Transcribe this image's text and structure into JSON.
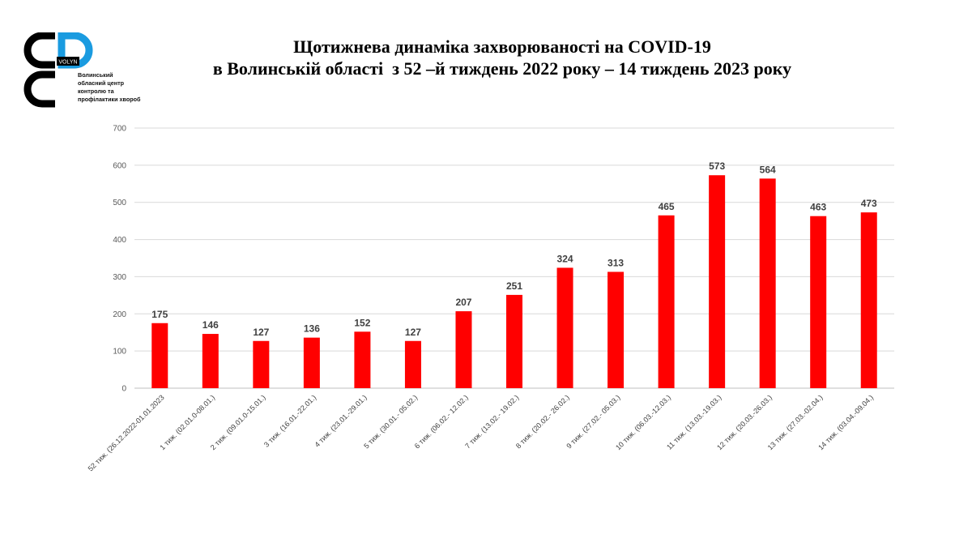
{
  "logo": {
    "badge": "VOLYN",
    "lines": [
      "Волинський",
      "обласний центр",
      "контролю та",
      "профілактики хвороб"
    ],
    "colors": {
      "dark": "#000000",
      "accent": "#1a9be0"
    }
  },
  "title_line1": "Щотижнева динаміка захворюваності на COVID-19",
  "title_line2": "в Волинській області  з 52 –й тиждень 2022 року – 14 тиждень 2023 року",
  "chart_data": {
    "type": "bar",
    "title": "Щотижнева динаміка захворюваності на COVID-19 в Волинській області  з 52 –й тиждень 2022 року – 14 тиждень 2023 року",
    "xlabel": "",
    "ylabel": "",
    "ylim": [
      0,
      700
    ],
    "yticks": [
      0,
      100,
      200,
      300,
      400,
      500,
      600,
      700
    ],
    "grid": true,
    "legend": "none",
    "bar_color": "#ff0000",
    "categories": [
      "52 тиж. (26.12.2022-01.01.2023",
      "1 тиж. (02.01.0-08.01.)",
      "2 тиж. (09.01.0-15.01.)",
      "3 тиж. (16.01.-22.01.)",
      "4 тиж. (23.01.-29.01.)",
      "5 тиж. (30.01.- 05.02.)",
      "6 тиж. (06.02.- 12.02.)",
      "7 тиж. (13.02.- 19.02.)",
      "8 тиж. (20.02.- 26.02.)",
      "9 тиж. (27.02.- 05.03.)",
      "10 тиж. (06.03.-12.03.)",
      "11 тиж. (13.03.-19.03.)",
      "12 тиж. (20.03.-26.03.)",
      "13 тиж. (27.03.-02.04.)",
      "14 тиж. (03.04.-09.04.)"
    ],
    "values": [
      175,
      146,
      127,
      136,
      152,
      127,
      207,
      251,
      324,
      313,
      465,
      573,
      564,
      463,
      473
    ]
  }
}
